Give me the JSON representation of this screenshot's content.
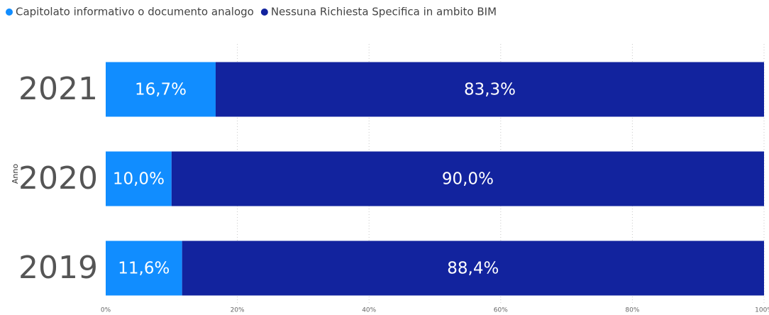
{
  "chart_data": {
    "type": "bar",
    "orientation": "horizontal",
    "stacked": true,
    "ylabel": "Anno",
    "categories": [
      "2021",
      "2020",
      "2019"
    ],
    "series": [
      {
        "name": "Capitolato informativo o documento analogo",
        "color": "#118DFF",
        "values": [
          16.7,
          10.0,
          11.6
        ],
        "value_labels": [
          "16,7%",
          "10,0%",
          "11,6%"
        ]
      },
      {
        "name": "Nessuna Richiesta Specifica in ambito BIM",
        "color": "#12239E",
        "values": [
          83.3,
          90.0,
          88.4
        ],
        "value_labels": [
          "83,3%",
          "90,0%",
          "88,4%"
        ]
      }
    ],
    "xlim": [
      0,
      100
    ],
    "xticks": [
      {
        "value": 0,
        "label": "0%"
      },
      {
        "value": 20,
        "label": "20%"
      },
      {
        "value": 40,
        "label": "40%"
      },
      {
        "value": 60,
        "label": "60%"
      },
      {
        "value": 80,
        "label": "80%"
      },
      {
        "value": 100,
        "label": "100%"
      }
    ],
    "grid": true,
    "legend": "top-left"
  }
}
